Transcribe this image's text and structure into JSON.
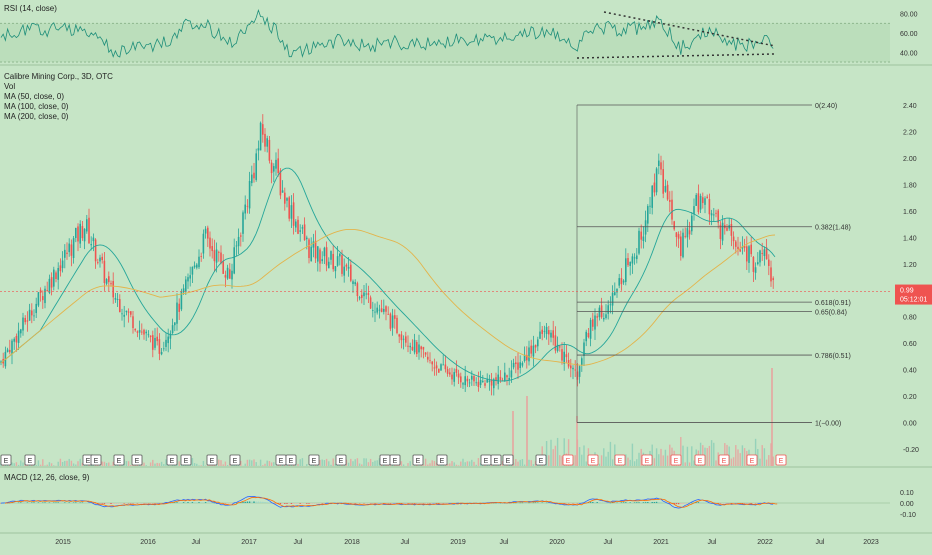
{
  "rsi": {
    "label": "RSI (14, close)",
    "ticks": [
      80.0,
      60.0,
      40.0
    ]
  },
  "main": {
    "title": "Calibre Mining Corp., 3D, OTC",
    "indicators": [
      "Vol",
      "MA (50, close, 0)",
      "MA (100, close, 0)",
      "MA (200, close, 0)"
    ],
    "price_ticks": [
      "2.40",
      "2.20",
      "2.00",
      "1.80",
      "1.60",
      "1.40",
      "1.20",
      "1.00",
      "0.80",
      "0.60",
      "0.40",
      "0.20",
      "0.00",
      "-0.20"
    ],
    "last_price": "0.99",
    "countdown": "05:12:01",
    "fib_levels": [
      {
        "label": "0(2.40)",
        "value": 2.4
      },
      {
        "label": "0.382(1.48)",
        "value": 1.48
      },
      {
        "label": "0.618(0.91)",
        "value": 0.91
      },
      {
        "label": "0.65(0.84)",
        "value": 0.84
      },
      {
        "label": "0.786(0.51)",
        "value": 0.51
      },
      {
        "label": "1(−0.00)",
        "value": 0.0
      }
    ],
    "event_marker": "E"
  },
  "macd": {
    "label": "MACD (12, 26, close, 9)",
    "ticks": [
      "0.10",
      "0.00",
      "-0.10"
    ]
  },
  "time_axis": [
    "2015",
    "2016",
    "Jul",
    "2017",
    "Jul",
    "2018",
    "Jul",
    "2019",
    "Jul",
    "2020",
    "Jul",
    "2021",
    "Jul",
    "2022",
    "Jul",
    "2023"
  ],
  "colors": {
    "background": "#c6e5c6",
    "up": "#26a69a",
    "down": "#ef5350",
    "ma50": "#26a69a",
    "ma100": "#2aa4a0",
    "ma200": "#e3b44b",
    "rsi_line": "#1e8e7a",
    "macd_line": "#2962ff",
    "signal_line": "#ff6d00",
    "price_badge": "#ef5350"
  },
  "chart_data": {
    "type": "candlestick",
    "series": [
      {
        "name": "Calibre Mining Corp., 3D, OTC",
        "x": [
          "2014-10",
          "2015-01",
          "2015-04",
          "2015-07",
          "2015-10",
          "2016-01",
          "2016-04",
          "2016-07",
          "2016-10",
          "2017-01",
          "2017-02",
          "2017-04",
          "2017-07",
          "2017-10",
          "2018-01",
          "2018-04",
          "2018-07",
          "2018-10",
          "2019-01",
          "2019-04",
          "2019-07",
          "2019-10",
          "2020-01",
          "2020-03",
          "2020-05",
          "2020-07",
          "2020-09",
          "2020-11",
          "2021-01",
          "2021-03",
          "2021-05",
          "2021-07",
          "2021-09",
          "2021-11",
          "2022-01"
        ],
        "y": [
          0.45,
          1.2,
          1.5,
          1.0,
          0.7,
          0.55,
          0.9,
          1.4,
          1.1,
          1.8,
          2.2,
          1.7,
          1.3,
          1.2,
          1.0,
          0.85,
          0.65,
          0.45,
          0.35,
          0.3,
          0.32,
          0.45,
          0.7,
          0.35,
          0.75,
          0.9,
          1.4,
          1.9,
          1.3,
          1.7,
          1.5,
          1.4,
          1.2,
          1.3,
          0.99
        ]
      }
    ],
    "ylim": [
      -0.2,
      2.5
    ],
    "fib_levels": [
      2.4,
      1.48,
      0.91,
      0.84,
      0.51,
      0.0
    ],
    "rsi_ylim": [
      30,
      90
    ],
    "macd_ylim": [
      -0.15,
      0.15
    ]
  }
}
